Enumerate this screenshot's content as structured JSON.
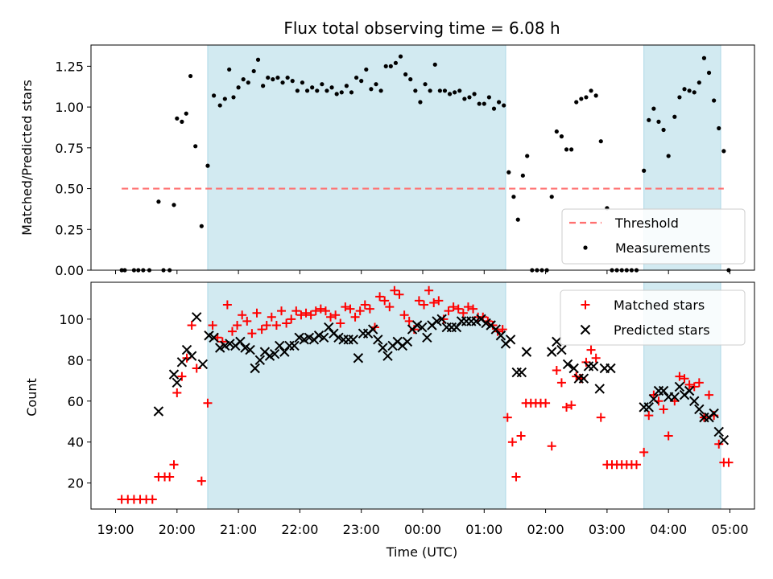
{
  "chart_data": {
    "type": "scatter",
    "title": "Flux total observing time = 6.08 h",
    "x_unit": "hours since 19:00 UTC",
    "x_label": "Time (UTC)",
    "x_lim": [
      -0.4,
      10.4
    ],
    "x_ticks": [
      {
        "v": 0,
        "label": "19:00"
      },
      {
        "v": 1,
        "label": "20:00"
      },
      {
        "v": 2,
        "label": "21:00"
      },
      {
        "v": 3,
        "label": "22:00"
      },
      {
        "v": 4,
        "label": "23:00"
      },
      {
        "v": 5,
        "label": "00:00"
      },
      {
        "v": 6,
        "label": "01:00"
      },
      {
        "v": 7,
        "label": "02:00"
      },
      {
        "v": 8,
        "label": "03:00"
      },
      {
        "v": 9,
        "label": "04:00"
      },
      {
        "v": 10,
        "label": "05:00"
      }
    ],
    "shaded_intervals": [
      [
        1.5,
        6.35
      ],
      [
        8.6,
        9.85
      ]
    ],
    "shade_color": "#add8e6",
    "top": {
      "ylabel": "Matched/Predicted stars",
      "ylim": [
        0,
        1.38
      ],
      "yticks": [
        "0.00",
        "0.25",
        "0.50",
        "0.75",
        "1.00",
        "1.25"
      ],
      "threshold": 0.5,
      "threshold_x": [
        0.1,
        9.9
      ],
      "threshold_color": "#ff7070",
      "legend": [
        "Threshold",
        "Measurements"
      ],
      "ratio": [
        [
          0.1,
          0
        ],
        [
          0.15,
          0
        ],
        [
          0.3,
          0
        ],
        [
          0.37,
          0
        ],
        [
          0.45,
          0
        ],
        [
          0.55,
          0
        ],
        [
          0.7,
          0.42
        ],
        [
          0.78,
          0
        ],
        [
          0.88,
          0
        ],
        [
          0.95,
          0.4
        ],
        [
          1.0,
          0.93
        ],
        [
          1.08,
          0.91
        ],
        [
          1.15,
          0.96
        ],
        [
          1.22,
          1.19
        ],
        [
          1.3,
          0.76
        ],
        [
          1.4,
          0.27
        ],
        [
          1.5,
          0.64
        ],
        [
          1.6,
          1.07
        ],
        [
          1.7,
          1.01
        ],
        [
          1.78,
          1.05
        ],
        [
          1.85,
          1.23
        ],
        [
          1.92,
          1.06
        ],
        [
          2.0,
          1.12
        ],
        [
          2.08,
          1.17
        ],
        [
          2.16,
          1.15
        ],
        [
          2.25,
          1.22
        ],
        [
          2.32,
          1.29
        ],
        [
          2.4,
          1.13
        ],
        [
          2.48,
          1.18
        ],
        [
          2.56,
          1.17
        ],
        [
          2.64,
          1.18
        ],
        [
          2.72,
          1.15
        ],
        [
          2.8,
          1.18
        ],
        [
          2.88,
          1.16
        ],
        [
          2.96,
          1.1
        ],
        [
          3.04,
          1.15
        ],
        [
          3.12,
          1.1
        ],
        [
          3.2,
          1.12
        ],
        [
          3.28,
          1.1
        ],
        [
          3.36,
          1.14
        ],
        [
          3.44,
          1.1
        ],
        [
          3.52,
          1.12
        ],
        [
          3.6,
          1.08
        ],
        [
          3.68,
          1.09
        ],
        [
          3.76,
          1.13
        ],
        [
          3.84,
          1.09
        ],
        [
          3.92,
          1.18
        ],
        [
          4.0,
          1.16
        ],
        [
          4.08,
          1.23
        ],
        [
          4.16,
          1.11
        ],
        [
          4.24,
          1.14
        ],
        [
          4.32,
          1.1
        ],
        [
          4.4,
          1.25
        ],
        [
          4.48,
          1.25
        ],
        [
          4.56,
          1.27
        ],
        [
          4.64,
          1.31
        ],
        [
          4.72,
          1.2
        ],
        [
          4.8,
          1.17
        ],
        [
          4.88,
          1.1
        ],
        [
          4.96,
          1.03
        ],
        [
          5.04,
          1.14
        ],
        [
          5.12,
          1.1
        ],
        [
          5.2,
          1.26
        ],
        [
          5.28,
          1.1
        ],
        [
          5.36,
          1.1
        ],
        [
          5.44,
          1.08
        ],
        [
          5.52,
          1.09
        ],
        [
          5.6,
          1.1
        ],
        [
          5.68,
          1.05
        ],
        [
          5.76,
          1.06
        ],
        [
          5.84,
          1.08
        ],
        [
          5.92,
          1.02
        ],
        [
          6.0,
          1.02
        ],
        [
          6.08,
          1.06
        ],
        [
          6.16,
          0.99
        ],
        [
          6.24,
          1.03
        ],
        [
          6.32,
          1.01
        ],
        [
          6.4,
          0.6
        ],
        [
          6.48,
          0.45
        ],
        [
          6.55,
          0.31
        ],
        [
          6.63,
          0.58
        ],
        [
          6.7,
          0.7
        ],
        [
          6.78,
          0
        ],
        [
          6.86,
          0
        ],
        [
          6.94,
          0
        ],
        [
          7.02,
          0
        ],
        [
          7.1,
          0.45
        ],
        [
          7.18,
          0.85
        ],
        [
          7.26,
          0.82
        ],
        [
          7.34,
          0.74
        ],
        [
          7.42,
          0.74
        ],
        [
          7.5,
          1.03
        ],
        [
          7.58,
          1.05
        ],
        [
          7.66,
          1.06
        ],
        [
          7.74,
          1.1
        ],
        [
          7.82,
          1.07
        ],
        [
          7.9,
          0.79
        ],
        [
          8.0,
          0.38
        ],
        [
          8.08,
          0
        ],
        [
          8.16,
          0
        ],
        [
          8.24,
          0
        ],
        [
          8.32,
          0
        ],
        [
          8.4,
          0
        ],
        [
          8.48,
          0
        ],
        [
          8.6,
          0.61
        ],
        [
          8.68,
          0.92
        ],
        [
          8.76,
          0.99
        ],
        [
          8.84,
          0.91
        ],
        [
          8.92,
          0.86
        ],
        [
          9.0,
          0.7
        ],
        [
          9.1,
          0.94
        ],
        [
          9.18,
          1.06
        ],
        [
          9.26,
          1.11
        ],
        [
          9.34,
          1.1
        ],
        [
          9.42,
          1.09
        ],
        [
          9.5,
          1.15
        ],
        [
          9.58,
          1.3
        ],
        [
          9.66,
          1.21
        ],
        [
          9.74,
          1.04
        ],
        [
          9.82,
          0.87
        ],
        [
          9.9,
          0.73
        ],
        [
          9.98,
          0
        ]
      ]
    },
    "bottom": {
      "ylabel": "Count",
      "ylim": [
        7.3,
        118
      ],
      "yticks": [
        20,
        40,
        60,
        80,
        100
      ],
      "legend": [
        "Matched stars",
        "Predicted stars"
      ],
      "matched": [
        [
          0.1,
          12
        ],
        [
          0.2,
          12
        ],
        [
          0.3,
          12
        ],
        [
          0.4,
          12
        ],
        [
          0.5,
          12
        ],
        [
          0.6,
          12
        ],
        [
          0.7,
          23
        ],
        [
          0.8,
          23
        ],
        [
          0.88,
          23
        ],
        [
          0.95,
          29
        ],
        [
          1.0,
          64
        ],
        [
          1.08,
          72
        ],
        [
          1.16,
          81
        ],
        [
          1.24,
          97
        ],
        [
          1.32,
          76
        ],
        [
          1.4,
          21
        ],
        [
          1.5,
          59
        ],
        [
          1.58,
          97
        ],
        [
          1.66,
          91
        ],
        [
          1.74,
          89
        ],
        [
          1.82,
          107
        ],
        [
          1.9,
          94
        ],
        [
          1.98,
          97
        ],
        [
          2.06,
          102
        ],
        [
          2.14,
          99
        ],
        [
          2.22,
          93
        ],
        [
          2.3,
          103
        ],
        [
          2.38,
          95
        ],
        [
          2.46,
          97
        ],
        [
          2.54,
          101
        ],
        [
          2.62,
          97
        ],
        [
          2.7,
          104
        ],
        [
          2.78,
          98
        ],
        [
          2.86,
          100
        ],
        [
          2.94,
          104
        ],
        [
          3.02,
          102
        ],
        [
          3.1,
          103
        ],
        [
          3.18,
          102
        ],
        [
          3.26,
          104
        ],
        [
          3.34,
          105
        ],
        [
          3.42,
          104
        ],
        [
          3.5,
          101
        ],
        [
          3.58,
          102
        ],
        [
          3.66,
          98
        ],
        [
          3.74,
          106
        ],
        [
          3.82,
          105
        ],
        [
          3.9,
          101
        ],
        [
          3.98,
          104
        ],
        [
          4.06,
          107
        ],
        [
          4.14,
          105
        ],
        [
          4.22,
          96
        ],
        [
          4.3,
          111
        ],
        [
          4.38,
          109
        ],
        [
          4.46,
          106
        ],
        [
          4.54,
          114
        ],
        [
          4.62,
          112
        ],
        [
          4.7,
          102
        ],
        [
          4.78,
          99
        ],
        [
          4.86,
          95
        ],
        [
          4.94,
          109
        ],
        [
          5.02,
          107
        ],
        [
          5.1,
          114
        ],
        [
          5.18,
          108
        ],
        [
          5.26,
          109
        ],
        [
          5.34,
          100
        ],
        [
          5.42,
          104
        ],
        [
          5.5,
          106
        ],
        [
          5.58,
          105
        ],
        [
          5.66,
          103
        ],
        [
          5.74,
          106
        ],
        [
          5.82,
          105
        ],
        [
          5.9,
          101
        ],
        [
          5.98,
          101
        ],
        [
          6.06,
          99
        ],
        [
          6.14,
          97
        ],
        [
          6.22,
          94
        ],
        [
          6.3,
          95
        ],
        [
          6.38,
          52
        ],
        [
          6.46,
          40
        ],
        [
          6.52,
          23
        ],
        [
          6.6,
          43
        ],
        [
          6.68,
          59
        ],
        [
          6.76,
          59
        ],
        [
          6.84,
          59
        ],
        [
          6.92,
          59
        ],
        [
          7.0,
          59
        ],
        [
          7.1,
          38
        ],
        [
          7.18,
          75
        ],
        [
          7.26,
          69
        ],
        [
          7.34,
          57
        ],
        [
          7.42,
          58
        ],
        [
          7.5,
          72
        ],
        [
          7.58,
          71
        ],
        [
          7.66,
          79
        ],
        [
          7.74,
          85
        ],
        [
          7.82,
          81
        ],
        [
          7.9,
          52
        ],
        [
          8.0,
          29
        ],
        [
          8.08,
          29
        ],
        [
          8.16,
          29
        ],
        [
          8.24,
          29
        ],
        [
          8.32,
          29
        ],
        [
          8.4,
          29
        ],
        [
          8.48,
          29
        ],
        [
          8.6,
          35
        ],
        [
          8.68,
          53
        ],
        [
          8.76,
          63
        ],
        [
          8.84,
          60
        ],
        [
          8.92,
          56
        ],
        [
          9.0,
          43
        ],
        [
          9.1,
          60
        ],
        [
          9.18,
          72
        ],
        [
          9.26,
          71
        ],
        [
          9.34,
          68
        ],
        [
          9.42,
          67
        ],
        [
          9.5,
          69
        ],
        [
          9.58,
          52
        ],
        [
          9.66,
          63
        ],
        [
          9.74,
          53
        ],
        [
          9.82,
          39
        ],
        [
          9.9,
          30
        ],
        [
          9.98,
          30
        ]
      ],
      "predicted": [
        [
          0.7,
          55
        ],
        [
          0.95,
          73
        ],
        [
          1.0,
          69
        ],
        [
          1.08,
          79
        ],
        [
          1.16,
          85
        ],
        [
          1.24,
          82
        ],
        [
          1.32,
          101
        ],
        [
          1.42,
          78
        ],
        [
          1.52,
          92
        ],
        [
          1.6,
          91
        ],
        [
          1.7,
          86
        ],
        [
          1.78,
          87
        ],
        [
          1.86,
          88
        ],
        [
          1.95,
          87
        ],
        [
          2.03,
          89
        ],
        [
          2.11,
          86
        ],
        [
          2.19,
          85
        ],
        [
          2.27,
          76
        ],
        [
          2.35,
          80
        ],
        [
          2.43,
          84
        ],
        [
          2.51,
          82
        ],
        [
          2.59,
          83
        ],
        [
          2.67,
          87
        ],
        [
          2.75,
          84
        ],
        [
          2.83,
          87
        ],
        [
          2.91,
          87
        ],
        [
          2.99,
          91
        ],
        [
          3.07,
          90
        ],
        [
          3.15,
          91
        ],
        [
          3.23,
          90
        ],
        [
          3.31,
          92
        ],
        [
          3.39,
          91
        ],
        [
          3.47,
          96
        ],
        [
          3.55,
          93
        ],
        [
          3.63,
          91
        ],
        [
          3.71,
          90
        ],
        [
          3.79,
          90
        ],
        [
          3.87,
          90
        ],
        [
          3.95,
          81
        ],
        [
          4.03,
          93
        ],
        [
          4.11,
          93
        ],
        [
          4.19,
          95
        ],
        [
          4.27,
          90
        ],
        [
          4.35,
          86
        ],
        [
          4.43,
          82
        ],
        [
          4.51,
          87
        ],
        [
          4.59,
          89
        ],
        [
          4.67,
          87
        ],
        [
          4.75,
          89
        ],
        [
          4.83,
          95
        ],
        [
          4.91,
          97
        ],
        [
          4.99,
          96
        ],
        [
          5.07,
          91
        ],
        [
          5.15,
          97
        ],
        [
          5.23,
          99
        ],
        [
          5.31,
          100
        ],
        [
          5.39,
          96
        ],
        [
          5.47,
          96
        ],
        [
          5.55,
          96
        ],
        [
          5.63,
          99
        ],
        [
          5.71,
          99
        ],
        [
          5.79,
          99
        ],
        [
          5.87,
          99
        ],
        [
          5.95,
          100
        ],
        [
          6.03,
          98
        ],
        [
          6.11,
          97
        ],
        [
          6.19,
          95
        ],
        [
          6.27,
          92
        ],
        [
          6.35,
          88
        ],
        [
          6.43,
          90
        ],
        [
          6.53,
          74
        ],
        [
          6.61,
          74
        ],
        [
          6.69,
          84
        ],
        [
          7.1,
          84
        ],
        [
          7.18,
          89
        ],
        [
          7.26,
          85
        ],
        [
          7.36,
          78
        ],
        [
          7.46,
          76
        ],
        [
          7.54,
          71
        ],
        [
          7.62,
          71
        ],
        [
          7.7,
          77
        ],
        [
          7.78,
          77
        ],
        [
          7.88,
          66
        ],
        [
          7.96,
          76
        ],
        [
          8.06,
          76
        ],
        [
          8.6,
          57
        ],
        [
          8.68,
          57
        ],
        [
          8.76,
          61
        ],
        [
          8.84,
          65
        ],
        [
          8.92,
          65
        ],
        [
          9.0,
          62
        ],
        [
          9.1,
          62
        ],
        [
          9.18,
          67
        ],
        [
          9.26,
          63
        ],
        [
          9.34,
          65
        ],
        [
          9.42,
          60
        ],
        [
          9.5,
          56
        ],
        [
          9.58,
          52
        ],
        [
          9.66,
          52
        ],
        [
          9.74,
          54
        ],
        [
          9.82,
          45
        ],
        [
          9.9,
          41
        ]
      ]
    }
  }
}
